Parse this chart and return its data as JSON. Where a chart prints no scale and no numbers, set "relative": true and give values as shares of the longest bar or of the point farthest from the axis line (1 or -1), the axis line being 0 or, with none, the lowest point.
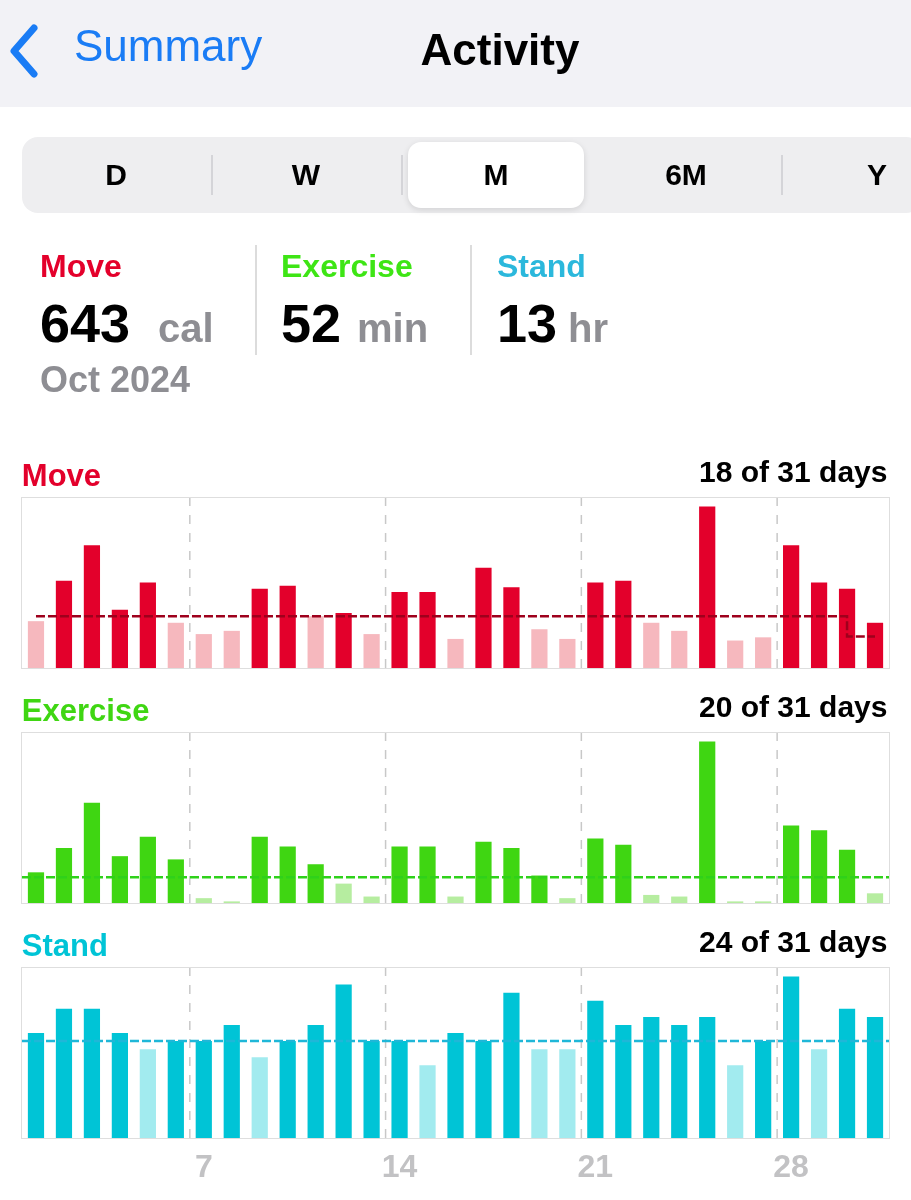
{
  "chart_data": [
    {
      "type": "other",
      "title": "Activity",
      "annotations": [
        "Summary",
        "D",
        "W",
        "M",
        "6M",
        "Y",
        "Move",
        "643",
        "cal",
        "Exercise",
        "52",
        "min",
        "Stand",
        "13",
        "hr",
        "Oct 2024"
      ]
    },
    {
      "type": "bar",
      "relative": true,
      "title": "Move",
      "subtitle": "18 of 31 days",
      "grid": "x",
      "tick_labels": false,
      "categories": [
        null,
        null,
        null,
        null,
        null,
        null,
        "7",
        null,
        null,
        null,
        null,
        null,
        null,
        "14",
        null,
        null,
        null,
        null,
        null,
        null,
        "21",
        null,
        null,
        null,
        null,
        null,
        null,
        "28",
        null,
        null,
        null
      ],
      "series": [
        {
          "color": "#e3002b",
          "colors": [
            "#f6b8be",
            "#e3002b",
            "#e3002b",
            "#e3002b",
            "#e3002b",
            "#f6b8be",
            "#f6b8be",
            "#f6b8be",
            "#e3002b",
            "#e3002b",
            "#f6b8be",
            "#e3002b",
            "#f6b8be",
            "#e3002b",
            "#e3002b",
            "#f6b8be",
            "#e3002b",
            "#e3002b",
            "#f6b8be",
            "#f6b8be",
            "#e3002b",
            "#e3002b",
            "#f6b8be",
            "#f6b8be",
            "#e3002b",
            "#f6b8be",
            "#f6b8be",
            "#e3002b",
            "#e3002b",
            "#e3002b",
            "#e3002b"
          ],
          "values": [
            0.29,
            0.54,
            0.76,
            0.36,
            0.53,
            0.28,
            0.21,
            0.23,
            0.49,
            0.51,
            0.32,
            0.34,
            0.21,
            0.47,
            0.47,
            0.18,
            0.62,
            0.5,
            0.24,
            0.18,
            0.53,
            0.54,
            0.28,
            0.23,
            1,
            0.17,
            0.19,
            0.76,
            0.53,
            0.49,
            0.28
          ]
        },
        {
          "type": "step",
          "line_style": "dashed",
          "color": "#9e001c",
          "values": [
            0.32,
            0.32,
            0.32,
            0.32,
            0.32,
            0.32,
            0.32,
            0.32,
            0.32,
            0.32,
            0.32,
            0.32,
            0.32,
            0.32,
            0.32,
            0.32,
            0.32,
            0.32,
            0.32,
            0.32,
            0.32,
            0.32,
            0.32,
            0.32,
            0.32,
            0.32,
            0.32,
            0.32,
            0.32,
            0.195,
            0.195
          ]
        }
      ]
    },
    {
      "type": "bar",
      "relative": true,
      "title": "Exercise",
      "subtitle": "20 of 31 days",
      "grid": "x",
      "tick_labels": false,
      "categories": [
        null,
        null,
        null,
        null,
        null,
        null,
        "7",
        null,
        null,
        null,
        null,
        null,
        null,
        "14",
        null,
        null,
        null,
        null,
        null,
        null,
        "21",
        null,
        null,
        null,
        null,
        null,
        null,
        "28",
        null,
        null,
        null
      ],
      "series": [
        {
          "color": "#3fd612",
          "colors": [
            "#3fd612",
            "#3fd612",
            "#3fd612",
            "#3fd612",
            "#3fd612",
            "#3fd612",
            "#b6eda0",
            "#b6eda0",
            "#3fd612",
            "#3fd612",
            "#3fd612",
            "#b6eda0",
            "#b6eda0",
            "#3fd612",
            "#3fd612",
            "#b6eda0",
            "#3fd612",
            "#3fd612",
            "#3fd612",
            "#b6eda0",
            "#3fd612",
            "#3fd612",
            "#b6eda0",
            "#b6eda0",
            "#3fd612",
            "#b6eda0",
            "#b6eda0",
            "#3fd612",
            "#3fd612",
            "#3fd612",
            "#b6eda0"
          ],
          "values": [
            0.19,
            0.34,
            0.62,
            0.29,
            0.41,
            0.27,
            0.03,
            0.01,
            0.41,
            0.35,
            0.24,
            0.12,
            0.04,
            0.35,
            0.35,
            0.04,
            0.38,
            0.34,
            0.17,
            0.03,
            0.4,
            0.36,
            0.05,
            0.04,
            1,
            0.01,
            0.01,
            0.48,
            0.45,
            0.33,
            0.06
          ]
        }
      ],
      "ref_lines": [
        {
          "axis": "y",
          "value": 0.16,
          "color": "#2fd11a",
          "line_style": "dashed"
        }
      ]
    },
    {
      "type": "bar",
      "relative": true,
      "title": "Stand",
      "subtitle": "24 of 31 days",
      "grid": "x",
      "tick_labels": "x",
      "categories": [
        null,
        null,
        null,
        null,
        null,
        null,
        "7",
        null,
        null,
        null,
        null,
        null,
        null,
        "14",
        null,
        null,
        null,
        null,
        null,
        null,
        "21",
        null,
        null,
        null,
        null,
        null,
        null,
        "28",
        null,
        null,
        null
      ],
      "series": [
        {
          "color": "#00c4d6",
          "colors": [
            "#00c4d6",
            "#00c4d6",
            "#00c4d6",
            "#00c4d6",
            "#a2ebef",
            "#00c4d6",
            "#00c4d6",
            "#00c4d6",
            "#a2ebef",
            "#00c4d6",
            "#00c4d6",
            "#00c4d6",
            "#00c4d6",
            "#00c4d6",
            "#a2ebef",
            "#00c4d6",
            "#00c4d6",
            "#00c4d6",
            "#a2ebef",
            "#a2ebef",
            "#00c4d6",
            "#00c4d6",
            "#00c4d6",
            "#00c4d6",
            "#00c4d6",
            "#a2ebef",
            "#00c4d6",
            "#00c4d6",
            "#a2ebef",
            "#00c4d6",
            "#00c4d6"
          ],
          "values": [
            0.65,
            0.8,
            0.8,
            0.65,
            0.55,
            0.6,
            0.6,
            0.7,
            0.5,
            0.6,
            0.7,
            0.95,
            0.6,
            0.6,
            0.45,
            0.65,
            0.6,
            0.9,
            0.55,
            0.55,
            0.85,
            0.7,
            0.75,
            0.7,
            0.75,
            0.45,
            0.6,
            1,
            0.55,
            0.8,
            0.75
          ]
        }
      ],
      "ref_lines": [
        {
          "axis": "y",
          "value": 0.6,
          "color": "#1fb7d8",
          "line_style": "dashed"
        }
      ]
    }
  ]
}
